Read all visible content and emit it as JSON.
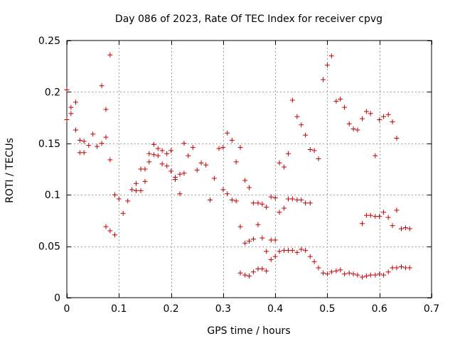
{
  "chart_data": {
    "type": "scatter",
    "title": "Day 086 of 2023, Rate Of TEC Index for receiver cpvg",
    "xlabel": "GPS time / hours",
    "ylabel": "ROTI / TECUs",
    "xlim": [
      0,
      0.7
    ],
    "ylim": [
      0,
      0.25
    ],
    "xticks": [
      0,
      0.1,
      0.2,
      0.3,
      0.4,
      0.5,
      0.6,
      0.7
    ],
    "xtick_labels": [
      "0",
      "0.1",
      "0.2",
      "0.3",
      "0.4",
      "0.5",
      "0.6",
      "0.7"
    ],
    "yticks": [
      0,
      0.05,
      0.1,
      0.15,
      0.2,
      0.25
    ],
    "ytick_labels": [
      "0",
      "0.05",
      "0.1",
      "0.15",
      "0.2",
      "0.25"
    ],
    "grid": true,
    "marker": "+",
    "color": "#c00000",
    "points": [
      [
        0.0,
        0.173
      ],
      [
        0.0,
        0.202
      ],
      [
        0.008,
        0.179
      ],
      [
        0.008,
        0.185
      ],
      [
        0.017,
        0.19
      ],
      [
        0.017,
        0.163
      ],
      [
        0.025,
        0.153
      ],
      [
        0.025,
        0.141
      ],
      [
        0.033,
        0.152
      ],
      [
        0.033,
        0.141
      ],
      [
        0.042,
        0.148
      ],
      [
        0.05,
        0.159
      ],
      [
        0.058,
        0.147
      ],
      [
        0.067,
        0.15
      ],
      [
        0.067,
        0.206
      ],
      [
        0.075,
        0.183
      ],
      [
        0.075,
        0.156
      ],
      [
        0.075,
        0.069
      ],
      [
        0.083,
        0.134
      ],
      [
        0.083,
        0.065
      ],
      [
        0.083,
        0.236
      ],
      [
        0.092,
        0.1
      ],
      [
        0.092,
        0.061
      ],
      [
        0.1,
        0.096
      ],
      [
        0.108,
        0.082
      ],
      [
        0.117,
        0.094
      ],
      [
        0.125,
        0.105
      ],
      [
        0.133,
        0.104
      ],
      [
        0.133,
        0.111
      ],
      [
        0.142,
        0.104
      ],
      [
        0.142,
        0.125
      ],
      [
        0.15,
        0.113
      ],
      [
        0.15,
        0.125
      ],
      [
        0.158,
        0.132
      ],
      [
        0.158,
        0.14
      ],
      [
        0.167,
        0.139
      ],
      [
        0.167,
        0.149
      ],
      [
        0.175,
        0.138
      ],
      [
        0.175,
        0.145
      ],
      [
        0.183,
        0.143
      ],
      [
        0.183,
        0.13
      ],
      [
        0.192,
        0.128
      ],
      [
        0.192,
        0.14
      ],
      [
        0.2,
        0.143
      ],
      [
        0.2,
        0.123
      ],
      [
        0.208,
        0.115
      ],
      [
        0.208,
        0.117
      ],
      [
        0.217,
        0.12
      ],
      [
        0.217,
        0.101
      ],
      [
        0.225,
        0.121
      ],
      [
        0.225,
        0.15
      ],
      [
        0.233,
        0.138
      ],
      [
        0.242,
        0.146
      ],
      [
        0.25,
        0.124
      ],
      [
        0.258,
        0.131
      ],
      [
        0.267,
        0.129
      ],
      [
        0.275,
        0.095
      ],
      [
        0.283,
        0.116
      ],
      [
        0.292,
        0.145
      ],
      [
        0.3,
        0.146
      ],
      [
        0.3,
        0.105
      ],
      [
        0.308,
        0.16
      ],
      [
        0.308,
        0.101
      ],
      [
        0.317,
        0.153
      ],
      [
        0.317,
        0.095
      ],
      [
        0.325,
        0.132
      ],
      [
        0.325,
        0.094
      ],
      [
        0.333,
        0.146
      ],
      [
        0.333,
        0.069
      ],
      [
        0.333,
        0.024
      ],
      [
        0.342,
        0.114
      ],
      [
        0.342,
        0.053
      ],
      [
        0.342,
        0.022
      ],
      [
        0.35,
        0.107
      ],
      [
        0.35,
        0.055
      ],
      [
        0.35,
        0.021
      ],
      [
        0.358,
        0.092
      ],
      [
        0.358,
        0.057
      ],
      [
        0.358,
        0.025
      ],
      [
        0.367,
        0.092
      ],
      [
        0.367,
        0.071
      ],
      [
        0.367,
        0.028
      ],
      [
        0.375,
        0.091
      ],
      [
        0.375,
        0.058
      ],
      [
        0.375,
        0.028
      ],
      [
        0.383,
        0.088
      ],
      [
        0.383,
        0.045
      ],
      [
        0.383,
        0.026
      ],
      [
        0.392,
        0.098
      ],
      [
        0.392,
        0.056
      ],
      [
        0.392,
        0.037
      ],
      [
        0.4,
        0.097
      ],
      [
        0.4,
        0.056
      ],
      [
        0.4,
        0.04
      ],
      [
        0.408,
        0.131
      ],
      [
        0.408,
        0.083
      ],
      [
        0.408,
        0.045
      ],
      [
        0.417,
        0.127
      ],
      [
        0.417,
        0.087
      ],
      [
        0.417,
        0.046
      ],
      [
        0.425,
        0.14
      ],
      [
        0.425,
        0.096
      ],
      [
        0.425,
        0.046
      ],
      [
        0.433,
        0.192
      ],
      [
        0.433,
        0.096
      ],
      [
        0.433,
        0.046
      ],
      [
        0.442,
        0.176
      ],
      [
        0.442,
        0.095
      ],
      [
        0.442,
        0.044
      ],
      [
        0.45,
        0.168
      ],
      [
        0.45,
        0.095
      ],
      [
        0.45,
        0.047
      ],
      [
        0.458,
        0.158
      ],
      [
        0.458,
        0.092
      ],
      [
        0.458,
        0.046
      ],
      [
        0.467,
        0.144
      ],
      [
        0.467,
        0.092
      ],
      [
        0.467,
        0.04
      ],
      [
        0.475,
        0.143
      ],
      [
        0.475,
        0.035
      ],
      [
        0.483,
        0.135
      ],
      [
        0.483,
        0.029
      ],
      [
        0.492,
        0.212
      ],
      [
        0.492,
        0.024
      ],
      [
        0.5,
        0.226
      ],
      [
        0.5,
        0.023
      ],
      [
        0.508,
        0.235
      ],
      [
        0.508,
        0.025
      ],
      [
        0.517,
        0.191
      ],
      [
        0.517,
        0.026
      ],
      [
        0.525,
        0.193
      ],
      [
        0.525,
        0.027
      ],
      [
        0.533,
        0.185
      ],
      [
        0.533,
        0.023
      ],
      [
        0.542,
        0.169
      ],
      [
        0.542,
        0.024
      ],
      [
        0.55,
        0.164
      ],
      [
        0.55,
        0.023
      ],
      [
        0.558,
        0.163
      ],
      [
        0.558,
        0.022
      ],
      [
        0.567,
        0.174
      ],
      [
        0.567,
        0.072
      ],
      [
        0.567,
        0.02
      ],
      [
        0.575,
        0.181
      ],
      [
        0.575,
        0.08
      ],
      [
        0.575,
        0.021
      ],
      [
        0.583,
        0.179
      ],
      [
        0.583,
        0.08
      ],
      [
        0.583,
        0.022
      ],
      [
        0.592,
        0.138
      ],
      [
        0.592,
        0.079
      ],
      [
        0.592,
        0.022
      ],
      [
        0.6,
        0.173
      ],
      [
        0.6,
        0.079
      ],
      [
        0.6,
        0.023
      ],
      [
        0.608,
        0.176
      ],
      [
        0.608,
        0.083
      ],
      [
        0.608,
        0.022
      ],
      [
        0.617,
        0.178
      ],
      [
        0.617,
        0.078
      ],
      [
        0.617,
        0.025
      ],
      [
        0.625,
        0.171
      ],
      [
        0.625,
        0.07
      ],
      [
        0.625,
        0.029
      ],
      [
        0.633,
        0.155
      ],
      [
        0.633,
        0.085
      ],
      [
        0.633,
        0.029
      ],
      [
        0.642,
        0.067
      ],
      [
        0.642,
        0.03
      ],
      [
        0.65,
        0.068
      ],
      [
        0.65,
        0.029
      ],
      [
        0.658,
        0.067
      ],
      [
        0.658,
        0.029
      ]
    ]
  }
}
